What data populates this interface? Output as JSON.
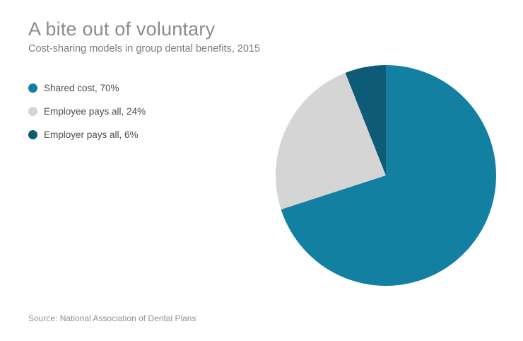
{
  "header": {
    "title": "A bite out of voluntary",
    "subtitle": "Cost-sharing models in group dental benefits, 2015"
  },
  "legend": {
    "items": [
      {
        "label": "Shared cost, 70%",
        "color": "#1380a1"
      },
      {
        "label": "Employee pays all, 24%",
        "color": "#d5d5d5"
      },
      {
        "label": "Employer pays all, 6%",
        "color": "#0d5b76"
      }
    ]
  },
  "footer": {
    "source": "Source: National Association of Dental Plans"
  },
  "chart_data": {
    "type": "pie",
    "title": "A bite out of voluntary",
    "subtitle": "Cost-sharing models in group dental benefits, 2015",
    "slices": [
      {
        "label": "Shared cost",
        "value": 70,
        "color": "#1380a1"
      },
      {
        "label": "Employee pays all",
        "value": 24,
        "color": "#d5d5d5"
      },
      {
        "label": "Employer pays all",
        "value": 6,
        "color": "#0d5b76"
      }
    ],
    "start_angle_deg": 0,
    "direction": "clockwise",
    "legend_position": "left",
    "source": "Source: National Association of Dental Plans"
  }
}
